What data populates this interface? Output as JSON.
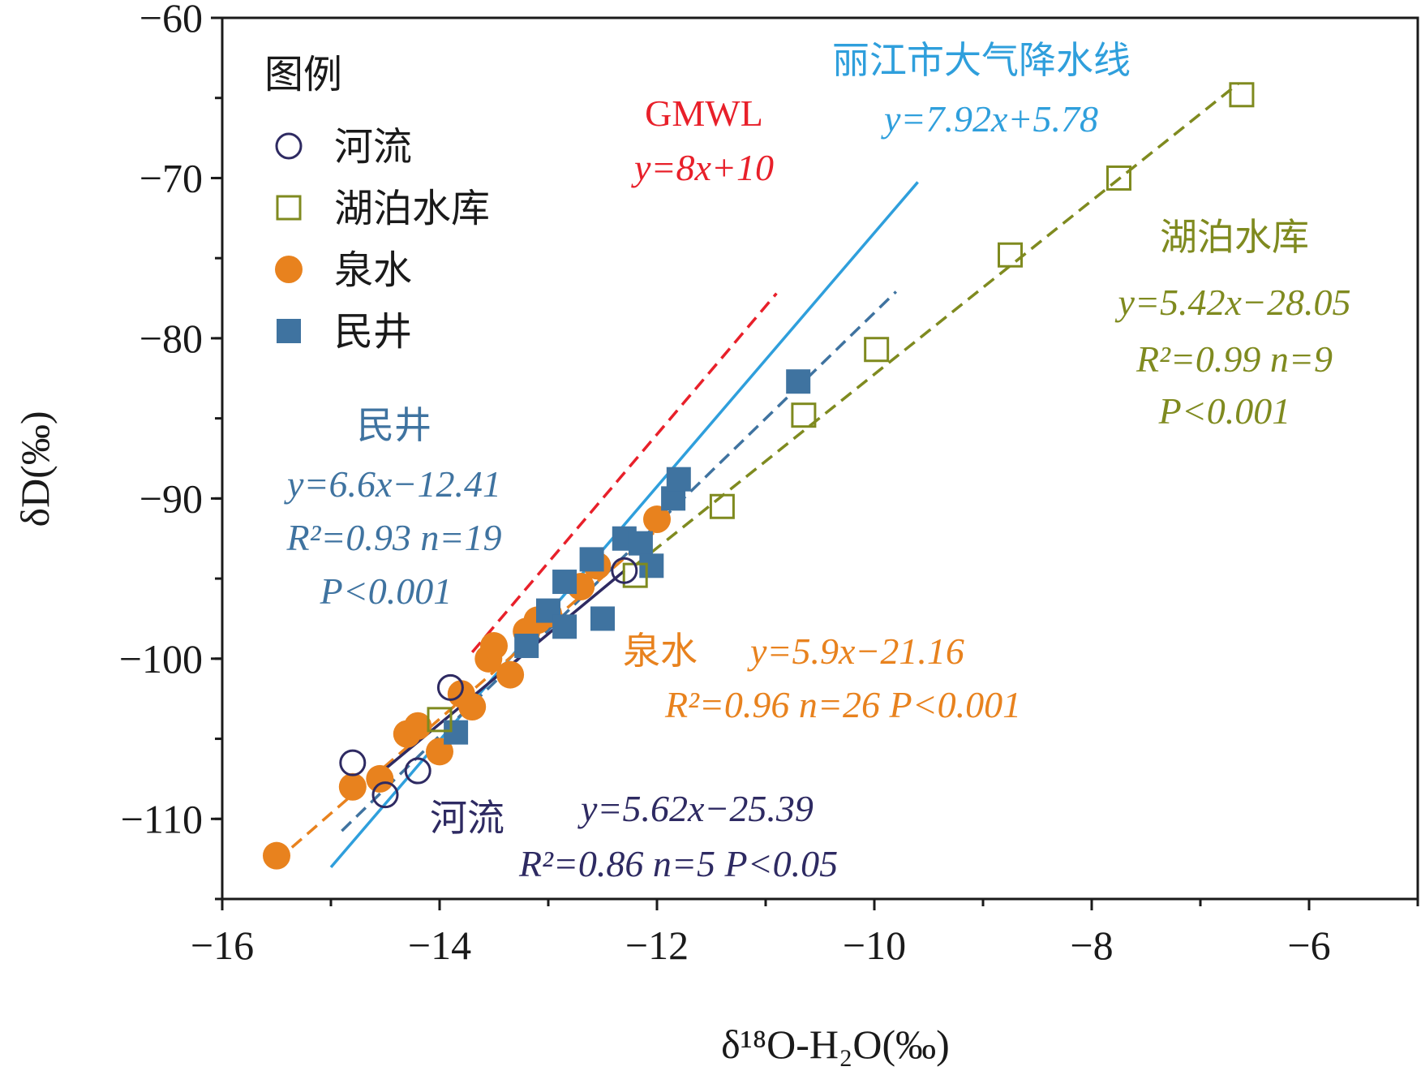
{
  "chart_data": {
    "type": "scatter",
    "xlabel": "δ¹⁸O-H₂O(‰)",
    "ylabel": "δD(‰)",
    "xlim": [
      -16,
      -5
    ],
    "ylim": [
      -115,
      -60
    ],
    "xticks": [
      -16,
      -14,
      -12,
      -10,
      -8,
      -6
    ],
    "xtick_labels": [
      "−16",
      "−14",
      "−12",
      "−10",
      "−8",
      "−6"
    ],
    "yticks": [
      -110,
      -100,
      -90,
      -80,
      -70,
      -60
    ],
    "ytick_labels": [
      "−110",
      "−100",
      "−90",
      "−80",
      "−70",
      "−60"
    ],
    "legend": {
      "title": "图例",
      "position": "top-left",
      "items": [
        "河流",
        "湖泊水库",
        "泉水",
        "民井"
      ]
    },
    "series": [
      {
        "name": "河流",
        "marker": "open-circle",
        "color": "#2e2a62",
        "points": [
          [
            -14.8,
            -106.5
          ],
          [
            -14.5,
            -108.5
          ],
          [
            -14.2,
            -107.0
          ],
          [
            -13.9,
            -101.8
          ],
          [
            -12.3,
            -94.5
          ]
        ]
      },
      {
        "name": "湖泊水库",
        "marker": "open-square",
        "color": "#7f8a1f",
        "points": [
          [
            -14.0,
            -103.8
          ],
          [
            -12.2,
            -94.8
          ],
          [
            -11.4,
            -90.5
          ],
          [
            -10.65,
            -84.8
          ],
          [
            -9.98,
            -80.7
          ],
          [
            -8.75,
            -74.8
          ],
          [
            -7.75,
            -70.0
          ],
          [
            -6.62,
            -64.8
          ]
        ]
      },
      {
        "name": "泉水",
        "marker": "filled-circle",
        "color": "#e8821e",
        "points": [
          [
            -15.5,
            -112.3
          ],
          [
            -14.8,
            -108.0
          ],
          [
            -14.55,
            -107.5
          ],
          [
            -14.3,
            -104.7
          ],
          [
            -14.2,
            -104.2
          ],
          [
            -14.0,
            -105.8
          ],
          [
            -13.8,
            -102.2
          ],
          [
            -13.7,
            -103.0
          ],
          [
            -13.55,
            -100.0
          ],
          [
            -13.5,
            -99.2
          ],
          [
            -13.35,
            -101.0
          ],
          [
            -13.2,
            -98.3
          ],
          [
            -13.1,
            -97.6
          ],
          [
            -13.0,
            -97.2
          ],
          [
            -12.7,
            -95.5
          ],
          [
            -12.55,
            -94.2
          ],
          [
            -12.0,
            -91.3
          ]
        ]
      },
      {
        "name": "民井",
        "marker": "filled-square",
        "color": "#3f73a0",
        "points": [
          [
            -13.85,
            -104.6
          ],
          [
            -13.2,
            -99.2
          ],
          [
            -13.0,
            -97.0
          ],
          [
            -12.85,
            -98.0
          ],
          [
            -12.85,
            -95.2
          ],
          [
            -12.6,
            -93.8
          ],
          [
            -12.5,
            -97.5
          ],
          [
            -12.3,
            -92.5
          ],
          [
            -12.15,
            -92.8
          ],
          [
            -12.05,
            -94.2
          ],
          [
            -11.85,
            -90.0
          ],
          [
            -11.8,
            -88.8
          ],
          [
            -10.7,
            -82.7
          ]
        ]
      }
    ],
    "lines": [
      {
        "name": "GMWL",
        "color": "#e8202a",
        "style": "dashed",
        "slope": 8,
        "intercept": 10,
        "x_range": [
          -13.7,
          -10.9
        ]
      },
      {
        "name": "丽江市大气降水线",
        "color": "#2f9fdc",
        "style": "solid",
        "slope": 7.92,
        "intercept": 5.78,
        "x_range": [
          -15.0,
          -9.6
        ]
      },
      {
        "name": "湖泊水库",
        "color": "#7f8a1f",
        "style": "dashed",
        "slope": 5.42,
        "intercept": -28.05,
        "x_range": [
          -12.2,
          -6.65
        ]
      },
      {
        "name": "民井",
        "color": "#3f73a0",
        "style": "dashed",
        "slope": 6.6,
        "intercept": -12.41,
        "x_range": [
          -14.9,
          -9.8
        ]
      },
      {
        "name": "泉水",
        "color": "#e8821e",
        "style": "dashed",
        "slope": 5.9,
        "intercept": -21.16,
        "x_range": [
          -15.5,
          -11.9
        ]
      },
      {
        "name": "河流",
        "color": "#2e2a62",
        "style": "solid",
        "slope": 5.62,
        "intercept": -25.39,
        "x_range": [
          -14.6,
          -12.3
        ]
      }
    ],
    "annotations": {
      "gmwl": {
        "name": "GMWL",
        "equation": "y=8x+10",
        "color": "#e8202a"
      },
      "lijiang": {
        "name": "丽江市大气降水线",
        "equation": "y=7.92x+5.78",
        "color": "#2f9fdc"
      },
      "lake": {
        "name": "湖泊水库",
        "equation": "y=5.42x−28.05",
        "stats": "R²=0.99 n=9",
        "p": "P<0.001",
        "color": "#7f8a1f"
      },
      "well": {
        "name": "民井",
        "equation": "y=6.6x−12.41",
        "stats": "R²=0.93 n=19",
        "p": "P<0.001",
        "color": "#3f73a0"
      },
      "spring": {
        "name": "泉水",
        "equation": "y=5.9x−21.16",
        "stats": "R²=0.96 n=26 P<0.001",
        "color": "#e8821e"
      },
      "river": {
        "name": "河流",
        "equation": "y=5.62x−25.39",
        "stats": "R²=0.86 n=5 P<0.05",
        "color": "#2e2a62"
      }
    }
  }
}
